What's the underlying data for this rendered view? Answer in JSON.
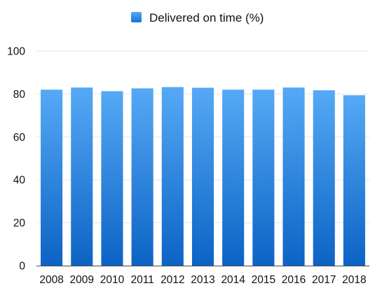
{
  "chart_data": {
    "type": "bar",
    "title": "",
    "xlabel": "",
    "ylabel": "",
    "categories": [
      "2008",
      "2009",
      "2010",
      "2011",
      "2012",
      "2013",
      "2014",
      "2015",
      "2016",
      "2017",
      "2018"
    ],
    "series": [
      {
        "name": "Delivered on time (%)",
        "values": [
          82.0,
          83.0,
          81.3,
          82.6,
          83.2,
          82.9,
          82.0,
          82.0,
          83.0,
          81.7,
          79.4
        ],
        "color": "#2f86e6"
      }
    ],
    "ylim": [
      0,
      100
    ],
    "yticks": [
      0,
      20,
      40,
      60,
      80,
      100
    ],
    "grid": true,
    "legend_position": "top",
    "colors": {
      "bar_top": "#55a9f5",
      "bar_bottom": "#0c63c4",
      "legend_swatch": "#2f86e6",
      "grid": "#e6e6e6",
      "axis": "#4a4a4a"
    }
  }
}
